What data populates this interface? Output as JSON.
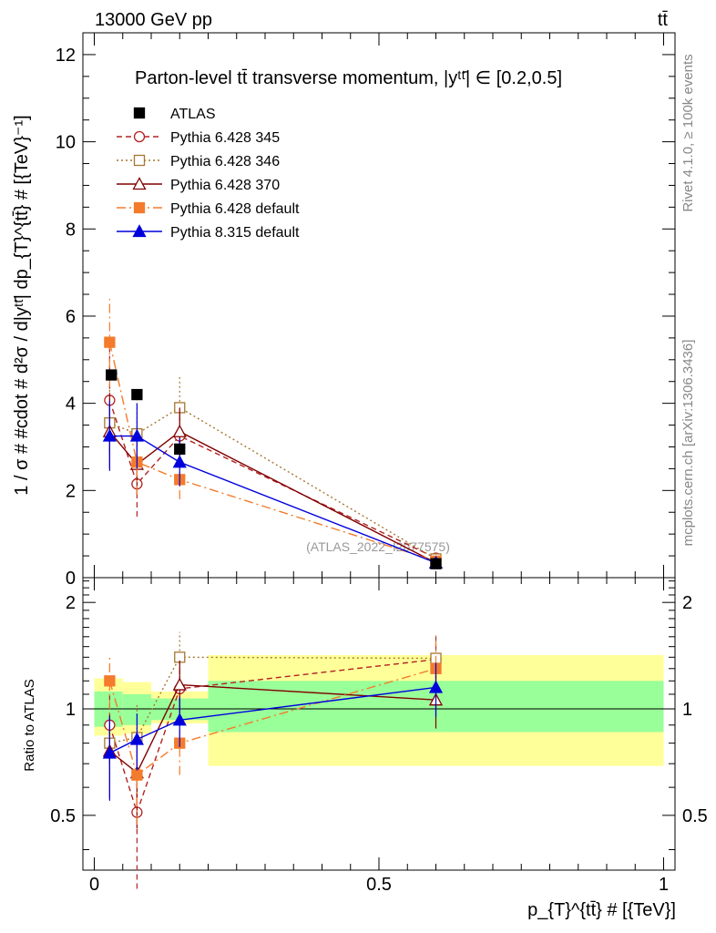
{
  "header": {
    "energy_label": "13000 GeV pp",
    "process_label": "tt̄"
  },
  "side_labels": {
    "rivet": "Rivet 4.1.0, ≥ 100k events",
    "source": "mcplots.cern.ch [arXiv:1306.3436]"
  },
  "chart_data": {
    "type": "scatter",
    "title": "Parton-level tt̄ transverse momentum, |yᵗᵗ̄| ∈ [0.2,0.5]",
    "analysis_label": "(ATLAS_2022_I2077575)",
    "xlabel": "p_{T}^{tt̄} # [{TeV}]",
    "ylabel": "1 / σ # #cdot # d²σ / d|yᵗᵗ̄| dp_{T}^{tt̄} # [{TeV}⁻¹]",
    "ratio_ylabel": "Ratio to ATLAS",
    "xlim": [
      -0.02,
      1.02
    ],
    "ylim": [
      0,
      12.5
    ],
    "ratio_ylim": [
      0.35,
      2.35
    ],
    "x_ticks": [
      0,
      0.5,
      1
    ],
    "x_tick_labels": [
      "0",
      "0.5",
      "1"
    ],
    "y_ticks": [
      0,
      2,
      4,
      6,
      8,
      10,
      12
    ],
    "y_tick_labels": [
      "0",
      "2",
      "4",
      "6",
      "8",
      "10",
      "12"
    ],
    "ratio_ticks": [
      0.5,
      1,
      2
    ],
    "ratio_tick_labels": [
      "0.5",
      "1",
      "2"
    ],
    "bins": [
      [
        0,
        0.05
      ],
      [
        0.05,
        0.1
      ],
      [
        0.1,
        0.2
      ],
      [
        0.2,
        1.0
      ]
    ],
    "band_inner": [
      [
        0.89,
        1.12
      ],
      [
        0.9,
        1.1
      ],
      [
        0.93,
        1.07
      ],
      [
        0.86,
        1.2
      ]
    ],
    "band_outer": [
      [
        0.84,
        1.22
      ],
      [
        0.85,
        1.19
      ],
      [
        0.91,
        1.12
      ],
      [
        0.69,
        1.42
      ]
    ],
    "legend": [
      "ATLAS",
      "Pythia 6.428 345",
      "Pythia 6.428 346",
      "Pythia 6.428 370",
      "Pythia 6.428 default",
      "Pythia 8.315 default"
    ],
    "series": [
      {
        "name": "ATLAS",
        "color": "#000000",
        "marker": "square-filled",
        "line": "none",
        "x": [
          0.03,
          0.075,
          0.15,
          0.6
        ],
        "y": [
          4.65,
          4.2,
          2.95,
          0.32
        ],
        "err": [
          0.1,
          0.1,
          0.1,
          0.03
        ],
        "ratio": [
          1,
          1,
          1,
          1
        ],
        "ratio_err": [
          0,
          0,
          0,
          0
        ]
      },
      {
        "name": "Pythia 6.428 345",
        "color": "#b22222",
        "marker": "circle-open",
        "line": "dashed",
        "x": [
          0.027,
          0.075,
          0.15,
          0.6
        ],
        "y": [
          4.07,
          2.15,
          3.25,
          0.45
        ],
        "err": [
          1.2,
          0.75,
          0.5,
          0.04
        ],
        "ratio": [
          0.9,
          0.51,
          1.14,
          1.38
        ],
        "ratio_err": [
          0.2,
          0.2,
          0.15,
          0.22
        ]
      },
      {
        "name": "Pythia 6.428 346",
        "color": "#a5772f",
        "marker": "square-open",
        "line": "dotted",
        "x": [
          0.027,
          0.075,
          0.15,
          0.6
        ],
        "y": [
          3.55,
          3.3,
          3.9,
          0.43
        ],
        "err": [
          0.85,
          0.8,
          0.7,
          0.04
        ],
        "ratio": [
          0.8,
          0.83,
          1.4,
          1.39
        ],
        "ratio_err": [
          0.2,
          0.2,
          0.25,
          0.24
        ]
      },
      {
        "name": "Pythia 6.428 370",
        "color": "#800000",
        "marker": "triangle-open",
        "line": "solid",
        "x": [
          0.027,
          0.075,
          0.15,
          0.6
        ],
        "y": [
          3.35,
          2.6,
          3.35,
          0.34
        ],
        "err": [
          0.85,
          0.7,
          0.55,
          0.04
        ],
        "ratio": [
          0.76,
          0.66,
          1.17,
          1.06
        ],
        "ratio_err": [
          0.2,
          0.2,
          0.2,
          0.18
        ]
      },
      {
        "name": "Pythia 6.428 default",
        "color": "#f47b2b",
        "marker": "square-filled",
        "line": "dashdot",
        "x": [
          0.027,
          0.075,
          0.15,
          0.6
        ],
        "y": [
          5.4,
          2.65,
          2.25,
          0.38
        ],
        "err": [
          1.0,
          0.75,
          0.45,
          0.04
        ],
        "ratio": [
          1.2,
          0.65,
          0.8,
          1.3
        ],
        "ratio_err": [
          0.2,
          0.18,
          0.15,
          0.25
        ]
      },
      {
        "name": "Pythia 8.315 default",
        "color": "#0000dd",
        "marker": "triangle-filled",
        "line": "solid",
        "x": [
          0.027,
          0.075,
          0.15,
          0.6
        ],
        "y": [
          3.25,
          3.25,
          2.65,
          0.34
        ],
        "err": [
          0.8,
          0.75,
          0.55,
          0.04
        ],
        "ratio": [
          0.75,
          0.82,
          0.93,
          1.15
        ],
        "ratio_err": [
          0.2,
          0.15,
          0.15,
          0.2
        ]
      }
    ]
  }
}
